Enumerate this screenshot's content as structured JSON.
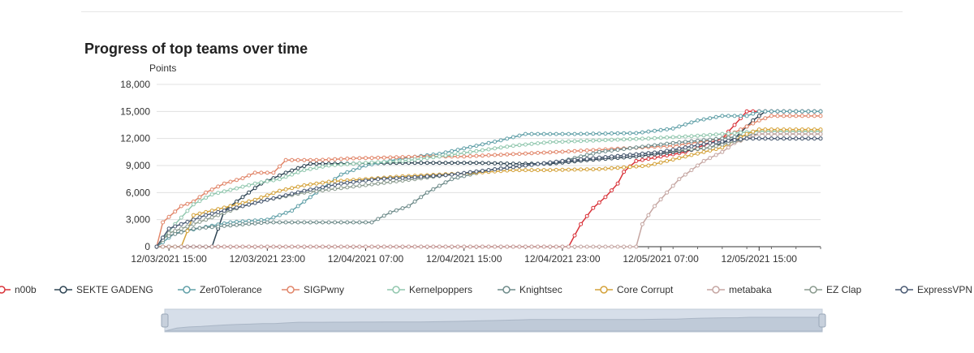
{
  "page": {
    "title": "Progress of top teams over time"
  },
  "chart_data": {
    "type": "line",
    "title": "Progress of top teams over time",
    "ylabel": "Points",
    "xlabel": "",
    "ylim": [
      0,
      18000
    ],
    "yticks": [
      0,
      3000,
      6000,
      9000,
      12000,
      15000,
      18000
    ],
    "ytick_labels": [
      "0",
      "3,000",
      "6,000",
      "9,000",
      "12,000",
      "15,000",
      "18,000"
    ],
    "xlim": [
      "12/03/2021 14:00",
      "12/05/2021 20:00"
    ],
    "xticks": [
      "12/03/2021 15:00",
      "12/03/2021 23:00",
      "12/04/2021 07:00",
      "12/04/2021 15:00",
      "12/04/2021 23:00",
      "12/05/2021 07:00",
      "12/05/2021 15:00"
    ],
    "xtick_labels": [
      "12/03/2021 15:00",
      "12/03/2021 23:00",
      "12/04/2021 07:00",
      "12/04/2021 15:00",
      "12/04/2021 23:00",
      "12/05/2021 07:00",
      "12/05/2021 15:00"
    ],
    "grid": true,
    "legend_position": "bottom",
    "series": [
      {
        "name": "n00b",
        "color": "#d9333a",
        "points": [
          [
            "12/03/2021 14:00",
            0
          ],
          [
            "12/04/2021 23:30",
            0
          ],
          [
            "12/05/2021 00:30",
            2500
          ],
          [
            "12/05/2021 01:30",
            4300
          ],
          [
            "12/05/2021 02:30",
            5500
          ],
          [
            "12/05/2021 03:30",
            7000
          ],
          [
            "12/05/2021 04:00",
            8300
          ],
          [
            "12/05/2021 05:00",
            9500
          ],
          [
            "12/05/2021 07:00",
            10000
          ],
          [
            "12/05/2021 09:00",
            10500
          ],
          [
            "12/05/2021 11:00",
            11500
          ],
          [
            "12/05/2021 12:00",
            12000
          ],
          [
            "12/05/2021 13:00",
            13500
          ],
          [
            "12/05/2021 14:00",
            15000
          ],
          [
            "12/05/2021 20:00",
            15000
          ]
        ]
      },
      {
        "name": "SEKTE GADENG",
        "color": "#2f4554",
        "points": [
          [
            "12/03/2021 14:00",
            0
          ],
          [
            "12/03/2021 18:30",
            0
          ],
          [
            "12/03/2021 19:30",
            4000
          ],
          [
            "12/03/2021 21:00",
            5500
          ],
          [
            "12/03/2021 22:30",
            7000
          ],
          [
            "12/04/2021 00:30",
            8200
          ],
          [
            "12/04/2021 02:30",
            9200
          ],
          [
            "12/04/2021 05:00",
            9200
          ],
          [
            "12/04/2021 10:00",
            9300
          ],
          [
            "12/04/2021 13:00",
            9300
          ],
          [
            "12/04/2021 16:00",
            9300
          ],
          [
            "12/04/2021 19:00",
            9200
          ],
          [
            "12/04/2021 22:00",
            9200
          ],
          [
            "12/05/2021 01:00",
            9600
          ],
          [
            "12/05/2021 05:00",
            10000
          ],
          [
            "12/05/2021 08:00",
            10500
          ],
          [
            "12/05/2021 11:00",
            11000
          ],
          [
            "12/05/2021 13:00",
            12000
          ],
          [
            "12/05/2021 14:30",
            14000
          ],
          [
            "12/05/2021 15:30",
            15000
          ],
          [
            "12/05/2021 20:00",
            15000
          ]
        ]
      },
      {
        "name": "Zer0Tolerance",
        "color": "#61a0a8",
        "points": [
          [
            "12/03/2021 14:00",
            0
          ],
          [
            "12/03/2021 15:30",
            1500
          ],
          [
            "12/03/2021 18:00",
            2200
          ],
          [
            "12/03/2021 20:00",
            2700
          ],
          [
            "12/03/2021 23:00",
            3000
          ],
          [
            "12/04/2021 01:00",
            4000
          ],
          [
            "12/04/2021 03:00",
            6000
          ],
          [
            "12/04/2021 05:00",
            8000
          ],
          [
            "12/04/2021 07:00",
            9000
          ],
          [
            "12/04/2021 10:00",
            9800
          ],
          [
            "12/04/2021 13:00",
            10300
          ],
          [
            "12/04/2021 16:00",
            11200
          ],
          [
            "12/04/2021 18:00",
            11800
          ],
          [
            "12/04/2021 20:00",
            12500
          ],
          [
            "12/05/2021 00:00",
            12500
          ],
          [
            "12/05/2021 05:00",
            12600
          ],
          [
            "12/05/2021 08:00",
            13100
          ],
          [
            "12/05/2021 10:00",
            14000
          ],
          [
            "12/05/2021 12:00",
            14500
          ],
          [
            "12/05/2021 14:00",
            14500
          ],
          [
            "12/05/2021 15:00",
            15000
          ],
          [
            "12/05/2021 20:00",
            15000
          ]
        ]
      },
      {
        "name": "SIGPwny",
        "color": "#e1866a",
        "points": [
          [
            "12/03/2021 14:00",
            0
          ],
          [
            "12/03/2021 14:30",
            2700
          ],
          [
            "12/03/2021 16:00",
            4500
          ],
          [
            "12/03/2021 17:00",
            5000
          ],
          [
            "12/03/2021 18:00",
            6000
          ],
          [
            "12/03/2021 19:30",
            7000
          ],
          [
            "12/03/2021 21:00",
            7600
          ],
          [
            "12/03/2021 22:00",
            8200
          ],
          [
            "12/03/2021 23:30",
            8200
          ],
          [
            "12/04/2021 00:30",
            9600
          ],
          [
            "12/04/2021 03:00",
            9600
          ],
          [
            "12/04/2021 06:00",
            9800
          ],
          [
            "12/04/2021 09:00",
            9900
          ],
          [
            "12/04/2021 12:00",
            10000
          ],
          [
            "12/04/2021 15:00",
            10000
          ],
          [
            "12/04/2021 18:00",
            10200
          ],
          [
            "12/04/2021 21:00",
            10400
          ],
          [
            "12/05/2021 00:00",
            10600
          ],
          [
            "12/05/2021 04:00",
            10900
          ],
          [
            "12/05/2021 08:00",
            11200
          ],
          [
            "12/05/2021 12:00",
            12000
          ],
          [
            "12/05/2021 13:30",
            13000
          ],
          [
            "12/05/2021 15:00",
            14000
          ],
          [
            "12/05/2021 16:00",
            14500
          ],
          [
            "12/05/2021 20:00",
            14500
          ]
        ]
      },
      {
        "name": "Kernelpoppers",
        "color": "#91c7ae",
        "points": [
          [
            "12/03/2021 14:00",
            0
          ],
          [
            "12/03/2021 15:30",
            2500
          ],
          [
            "12/03/2021 17:00",
            4700
          ],
          [
            "12/03/2021 18:30",
            5800
          ],
          [
            "12/03/2021 20:00",
            6300
          ],
          [
            "12/03/2021 22:00",
            7000
          ],
          [
            "12/04/2021 00:00",
            7500
          ],
          [
            "12/04/2021 02:00",
            8500
          ],
          [
            "12/04/2021 04:00",
            9000
          ],
          [
            "12/04/2021 07:00",
            9300
          ],
          [
            "12/04/2021 10:00",
            9500
          ],
          [
            "12/04/2021 13:00",
            10000
          ],
          [
            "12/04/2021 16:00",
            10600
          ],
          [
            "12/04/2021 19:00",
            11200
          ],
          [
            "12/04/2021 22:00",
            11600
          ],
          [
            "12/05/2021 02:00",
            11800
          ],
          [
            "12/05/2021 06:00",
            12000
          ],
          [
            "12/05/2021 10:00",
            12300
          ],
          [
            "12/05/2021 13:00",
            12600
          ],
          [
            "12/05/2021 15:00",
            12800
          ],
          [
            "12/05/2021 20:00",
            12800
          ]
        ]
      },
      {
        "name": "Knightsec",
        "color": "#6e8b8a",
        "points": [
          [
            "12/03/2021 14:00",
            0
          ],
          [
            "12/03/2021 14:30",
            1000
          ],
          [
            "12/03/2021 17:00",
            2000
          ],
          [
            "12/03/2021 19:30",
            2300
          ],
          [
            "12/03/2021 23:00",
            2700
          ],
          [
            "12/04/2021 03:00",
            2700
          ],
          [
            "12/04/2021 07:30",
            2700
          ],
          [
            "12/04/2021 09:00",
            3800
          ],
          [
            "12/04/2021 10:30",
            4500
          ],
          [
            "12/04/2021 12:00",
            6000
          ],
          [
            "12/04/2021 14:00",
            7500
          ],
          [
            "12/04/2021 17:00",
            8500
          ],
          [
            "12/04/2021 20:00",
            9000
          ],
          [
            "12/04/2021 23:00",
            9500
          ],
          [
            "12/05/2021 02:00",
            10500
          ],
          [
            "12/05/2021 05:00",
            11000
          ],
          [
            "12/05/2021 08:00",
            11500
          ],
          [
            "12/05/2021 12:00",
            12000
          ],
          [
            "12/05/2021 15:00",
            12500
          ],
          [
            "12/05/2021 20:00",
            12500
          ]
        ]
      },
      {
        "name": "Core Corrupt",
        "color": "#d4a23a",
        "points": [
          [
            "12/03/2021 14:00",
            0
          ],
          [
            "12/03/2021 16:00",
            0
          ],
          [
            "12/03/2021 17:00",
            3500
          ],
          [
            "12/03/2021 18:30",
            4000
          ],
          [
            "12/03/2021 20:00",
            4500
          ],
          [
            "12/03/2021 22:00",
            5200
          ],
          [
            "12/04/2021 00:00",
            6200
          ],
          [
            "12/04/2021 02:00",
            6800
          ],
          [
            "12/04/2021 04:00",
            7200
          ],
          [
            "12/04/2021 07:00",
            7500
          ],
          [
            "12/04/2021 10:00",
            7800
          ],
          [
            "12/04/2021 13:00",
            8000
          ],
          [
            "12/04/2021 16:00",
            8200
          ],
          [
            "12/04/2021 19:00",
            8500
          ],
          [
            "12/04/2021 22:00",
            8500
          ],
          [
            "12/05/2021 02:00",
            8600
          ],
          [
            "12/05/2021 06:00",
            9000
          ],
          [
            "12/05/2021 09:00",
            10000
          ],
          [
            "12/05/2021 12:00",
            11000
          ],
          [
            "12/05/2021 14:00",
            12500
          ],
          [
            "12/05/2021 15:00",
            13000
          ],
          [
            "12/05/2021 20:00",
            13000
          ]
        ]
      },
      {
        "name": "metabaka",
        "color": "#c5a6a2",
        "points": [
          [
            "12/03/2021 14:00",
            0
          ],
          [
            "12/05/2021 05:00",
            0
          ],
          [
            "12/05/2021 05:30",
            2500
          ],
          [
            "12/05/2021 06:30",
            4500
          ],
          [
            "12/05/2021 07:30",
            6000
          ],
          [
            "12/05/2021 08:30",
            7500
          ],
          [
            "12/05/2021 09:30",
            8500
          ],
          [
            "12/05/2021 10:30",
            9500
          ],
          [
            "12/05/2021 12:00",
            10500
          ],
          [
            "12/05/2021 13:00",
            11500
          ],
          [
            "12/05/2021 14:00",
            12000
          ],
          [
            "12/05/2021 15:00",
            12500
          ],
          [
            "12/05/2021 20:00",
            12500
          ]
        ]
      },
      {
        "name": "EZ Clap",
        "color": "#8a9a8e",
        "points": [
          [
            "12/03/2021 14:00",
            0
          ],
          [
            "12/03/2021 15:00",
            1500
          ],
          [
            "12/03/2021 17:00",
            2500
          ],
          [
            "12/03/2021 19:00",
            3500
          ],
          [
            "12/03/2021 21:00",
            4500
          ],
          [
            "12/03/2021 23:00",
            5200
          ],
          [
            "12/04/2021 02:00",
            6000
          ],
          [
            "12/04/2021 05:00",
            6500
          ],
          [
            "12/04/2021 08:00",
            7000
          ],
          [
            "12/04/2021 11:00",
            7500
          ],
          [
            "12/04/2021 14:00",
            8000
          ],
          [
            "12/04/2021 17:00",
            8500
          ],
          [
            "12/04/2021 20:00",
            9000
          ],
          [
            "12/04/2021 23:00",
            9500
          ],
          [
            "12/05/2021 03:00",
            10000
          ],
          [
            "12/05/2021 07:00",
            10500
          ],
          [
            "12/05/2021 11:00",
            11000
          ],
          [
            "12/05/2021 14:00",
            12000
          ],
          [
            "12/05/2021 20:00",
            12000
          ]
        ]
      },
      {
        "name": "ExpressVPN",
        "color": "#4a5a73",
        "points": [
          [
            "12/03/2021 14:00",
            0
          ],
          [
            "12/03/2021 15:00",
            2000
          ],
          [
            "12/03/2021 18:00",
            3500
          ],
          [
            "12/03/2021 21:00",
            4500
          ],
          [
            "12/03/2021 23:00",
            5200
          ],
          [
            "12/04/2021 02:00",
            6200
          ],
          [
            "12/04/2021 05:00",
            7000
          ],
          [
            "12/04/2021 08:00",
            7500
          ],
          [
            "12/04/2021 11:00",
            7700
          ],
          [
            "12/04/2021 14:00",
            8000
          ],
          [
            "12/04/2021 17:00",
            8500
          ],
          [
            "12/04/2021 20:00",
            9000
          ],
          [
            "12/04/2021 23:00",
            9500
          ],
          [
            "12/05/2021 03:00",
            10000
          ],
          [
            "12/05/2021 07:00",
            10500
          ],
          [
            "12/05/2021 11:00",
            11500
          ],
          [
            "12/05/2021 14:00",
            12000
          ],
          [
            "12/05/2021 20:00",
            12000
          ]
        ]
      }
    ]
  }
}
